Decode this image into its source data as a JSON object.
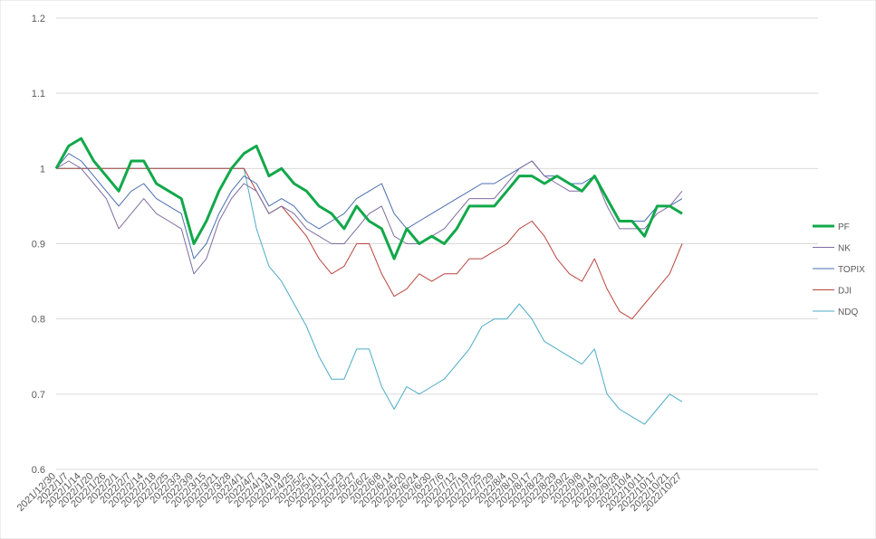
{
  "chart_data": {
    "type": "line",
    "title": "",
    "xlabel": "",
    "ylabel": "",
    "ylim": [
      0.6,
      1.2
    ],
    "yticks": [
      "0.6",
      "0.7",
      "0.8",
      "0.9",
      "1",
      "1.1",
      "1.2"
    ],
    "grid": true,
    "legend_position": "right",
    "x": [
      "2021/12/30",
      "2022/1/7",
      "2022/1/14",
      "2022/1/20",
      "2022/1/26",
      "2022/2/1",
      "2022/2/7",
      "2022/2/14",
      "2022/2/18",
      "2022/2/25",
      "2022/3/3",
      "2022/3/9",
      "2022/3/15",
      "2022/3/21",
      "2022/3/28",
      "2022/4/1",
      "2022/4/7",
      "2022/4/13",
      "2022/4/19",
      "2022/4/25",
      "2022/5/2",
      "2022/5/11",
      "2022/5/17",
      "2022/5/23",
      "2022/5/27",
      "2022/6/2",
      "2022/6/8",
      "2022/6/14",
      "2022/6/20",
      "2022/6/24",
      "2022/6/30",
      "2022/7/6",
      "2022/7/12",
      "2022/7/19",
      "2022/7/25",
      "2022/7/29",
      "2022/8/4",
      "2022/8/10",
      "2022/8/17",
      "2022/8/23",
      "2022/8/29",
      "2022/9/2",
      "2022/9/8",
      "2022/9/14",
      "2022/9/21",
      "2022/9/28",
      "2022/10/4",
      "2022/10/11",
      "2022/10/17",
      "2022/10/21",
      "2022/10/27"
    ],
    "series": [
      {
        "name": "PF",
        "color": "#11a84a",
        "width": 3,
        "values": [
          1.0,
          1.03,
          1.04,
          1.01,
          0.99,
          0.97,
          1.01,
          1.01,
          0.98,
          0.97,
          0.96,
          0.9,
          0.93,
          0.97,
          1.0,
          1.02,
          1.03,
          0.99,
          1.0,
          0.98,
          0.97,
          0.95,
          0.94,
          0.92,
          0.95,
          0.93,
          0.92,
          0.88,
          0.92,
          0.9,
          0.91,
          0.9,
          0.92,
          0.95,
          0.95,
          0.95,
          0.97,
          0.99,
          0.99,
          0.98,
          0.99,
          0.98,
          0.97,
          0.99,
          0.96,
          0.93,
          0.93,
          0.91,
          0.95,
          0.95,
          0.94
        ]
      },
      {
        "name": "NK",
        "color": "#7f6c9f",
        "width": 1,
        "values": [
          1.0,
          1.01,
          1.0,
          0.98,
          0.96,
          0.92,
          0.94,
          0.96,
          0.94,
          0.93,
          0.92,
          0.86,
          0.88,
          0.93,
          0.96,
          0.98,
          0.97,
          0.94,
          0.95,
          0.94,
          0.92,
          0.91,
          0.9,
          0.9,
          0.92,
          0.94,
          0.95,
          0.91,
          0.9,
          0.9,
          0.91,
          0.92,
          0.94,
          0.96,
          0.96,
          0.96,
          0.98,
          1.0,
          1.01,
          0.99,
          0.98,
          0.97,
          0.97,
          0.99,
          0.95,
          0.92,
          0.92,
          0.92,
          0.94,
          0.95,
          0.97
        ]
      },
      {
        "name": "TOPIX",
        "color": "#4a6fb0",
        "width": 1,
        "values": [
          1.0,
          1.02,
          1.01,
          0.99,
          0.97,
          0.95,
          0.97,
          0.98,
          0.96,
          0.95,
          0.94,
          0.88,
          0.9,
          0.94,
          0.97,
          0.99,
          0.98,
          0.95,
          0.96,
          0.95,
          0.93,
          0.92,
          0.93,
          0.94,
          0.96,
          0.97,
          0.98,
          0.94,
          0.92,
          0.93,
          0.94,
          0.95,
          0.96,
          0.97,
          0.98,
          0.98,
          0.99,
          1.0,
          1.01,
          0.99,
          0.99,
          0.98,
          0.98,
          0.99,
          0.96,
          0.93,
          0.93,
          0.93,
          0.95,
          0.95,
          0.96
        ]
      },
      {
        "name": "DJI",
        "color": "#b8463f",
        "width": 1,
        "values": [
          1.0,
          1.0,
          1.0,
          1.0,
          1.0,
          1.0,
          1.0,
          1.0,
          1.0,
          1.0,
          1.0,
          1.0,
          1.0,
          1.0,
          1.0,
          1.0,
          0.97,
          0.94,
          0.95,
          0.93,
          0.91,
          0.88,
          0.86,
          0.87,
          0.9,
          0.9,
          0.86,
          0.83,
          0.84,
          0.86,
          0.85,
          0.86,
          0.86,
          0.88,
          0.88,
          0.89,
          0.9,
          0.92,
          0.93,
          0.91,
          0.88,
          0.86,
          0.85,
          0.88,
          0.84,
          0.81,
          0.8,
          0.82,
          0.84,
          0.86,
          0.9
        ]
      },
      {
        "name": "NDQ",
        "color": "#4bacc6",
        "width": 1,
        "values": [
          1.0,
          1.0,
          1.0,
          1.0,
          1.0,
          1.0,
          1.0,
          1.0,
          1.0,
          1.0,
          1.0,
          1.0,
          1.0,
          1.0,
          1.0,
          1.0,
          0.92,
          0.87,
          0.85,
          0.82,
          0.79,
          0.75,
          0.72,
          0.72,
          0.76,
          0.76,
          0.71,
          0.68,
          0.71,
          0.7,
          0.71,
          0.72,
          0.74,
          0.76,
          0.79,
          0.8,
          0.8,
          0.82,
          0.8,
          0.77,
          0.76,
          0.75,
          0.74,
          0.76,
          0.7,
          0.68,
          0.67,
          0.66,
          0.68,
          0.7,
          0.69
        ]
      }
    ]
  }
}
